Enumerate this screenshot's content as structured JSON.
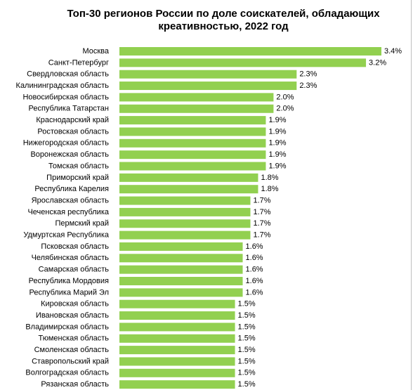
{
  "chart_data": {
    "type": "barh",
    "title": "Топ-30 регионов России по доле соискателей, обладающих креативностью, 2022 год",
    "categories": [
      "Москва",
      "Санкт-Петербург",
      "Свердловская область",
      "Калининградская область",
      "Новосибирская область",
      "Республика Татарстан",
      "Краснодарский край",
      "Ростовская область",
      "Нижегородская область",
      "Воронежская область",
      "Томская область",
      "Приморский край",
      "Республика Карелия",
      "Ярославская область",
      "Чеченская республика",
      "Пермский край",
      "Удмуртская Республика",
      "Псковская область",
      "Челябинская область",
      "Самарская область",
      "Республика Мордовия",
      "Республика Марий Эл",
      "Кировская область",
      "Ивановская область",
      "Владимирская область",
      "Тюменская область",
      "Смоленская область",
      "Ставропольский край",
      "Волгоградская область",
      "Рязанская область"
    ],
    "values": [
      3.4,
      3.2,
      2.3,
      2.3,
      2.0,
      2.0,
      1.9,
      1.9,
      1.9,
      1.9,
      1.9,
      1.8,
      1.8,
      1.7,
      1.7,
      1.7,
      1.7,
      1.6,
      1.6,
      1.6,
      1.6,
      1.6,
      1.5,
      1.5,
      1.5,
      1.5,
      1.5,
      1.5,
      1.5,
      1.5
    ],
    "value_labels": [
      "3.4%",
      "3.2%",
      "2.3%",
      "2.3%",
      "2.0%",
      "2.0%",
      "1.9%",
      "1.9%",
      "1.9%",
      "1.9%",
      "1.9%",
      "1.8%",
      "1.8%",
      "1.7%",
      "1.7%",
      "1.7%",
      "1.7%",
      "1.6%",
      "1.6%",
      "1.6%",
      "1.6%",
      "1.6%",
      "1.5%",
      "1.5%",
      "1.5%",
      "1.5%",
      "1.5%",
      "1.5%",
      "1.5%",
      "1.5%"
    ],
    "color": "#92d050"
  }
}
